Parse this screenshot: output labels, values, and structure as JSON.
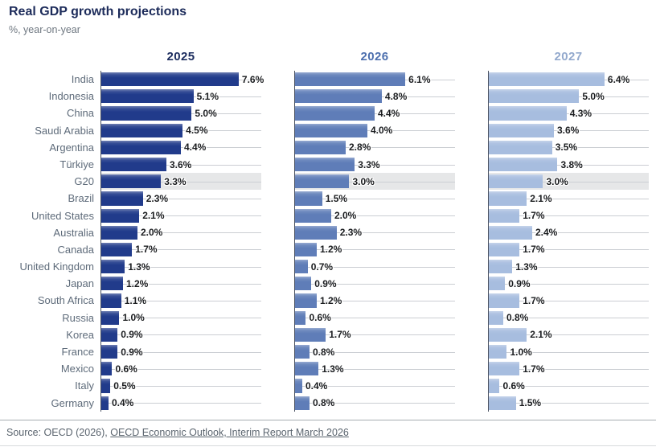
{
  "title": "Real GDP growth projections",
  "subtitle": "%, year-on-year",
  "source": {
    "prefix": "Source: OECD (2026), ",
    "link": "OECD Economic Outlook, Interim Report March 2026"
  },
  "colors": {
    "title": "#1C2B5A",
    "category_label": "#5E6B7A",
    "value_label": "#1A1C1F",
    "axis_line": "#4A5161",
    "leader_line": "#CBCED3",
    "highlight_band": "#E6E7E8",
    "footer_text": "#5A646E"
  },
  "chart_data": {
    "type": "bar",
    "orientation": "horizontal",
    "panels": 3,
    "grid": "off",
    "legend_position": "column-headers-top",
    "unit": "%",
    "value_format": "one_decimal_percent",
    "xlim": [
      0,
      8.85
    ],
    "highlight_category": "G20",
    "categories": [
      "India",
      "Indonesia",
      "China",
      "Saudi Arabia",
      "Argentina",
      "Türkiye",
      "G20",
      "Brazil",
      "United States",
      "Australia",
      "Canada",
      "United Kingdom",
      "Japan",
      "South Africa",
      "Russia",
      "Korea",
      "France",
      "Mexico",
      "Italy",
      "Germany"
    ],
    "series": [
      {
        "name": "2025",
        "bar_color": "#213B8B",
        "header_color": "#1B2C5E",
        "values": [
          7.6,
          5.1,
          5.0,
          4.5,
          4.4,
          3.6,
          3.3,
          2.3,
          2.1,
          2.0,
          1.7,
          1.3,
          1.2,
          1.1,
          1.0,
          0.9,
          0.9,
          0.6,
          0.5,
          0.4
        ]
      },
      {
        "name": "2026",
        "bar_color": "#5F7DB8",
        "header_color": "#4C6FAE",
        "values": [
          6.1,
          4.8,
          4.4,
          4.0,
          2.8,
          3.3,
          3.0,
          1.5,
          2.0,
          2.3,
          1.2,
          0.7,
          0.9,
          1.2,
          0.6,
          1.7,
          0.8,
          1.3,
          0.4,
          0.8
        ]
      },
      {
        "name": "2027",
        "bar_color": "#A7BDDF",
        "header_color": "#93A9CD",
        "values": [
          6.4,
          5.0,
          4.3,
          3.6,
          3.5,
          3.8,
          3.0,
          2.1,
          1.7,
          2.4,
          1.7,
          1.3,
          0.9,
          1.7,
          0.8,
          2.1,
          1.0,
          1.7,
          0.6,
          1.5
        ]
      }
    ]
  }
}
